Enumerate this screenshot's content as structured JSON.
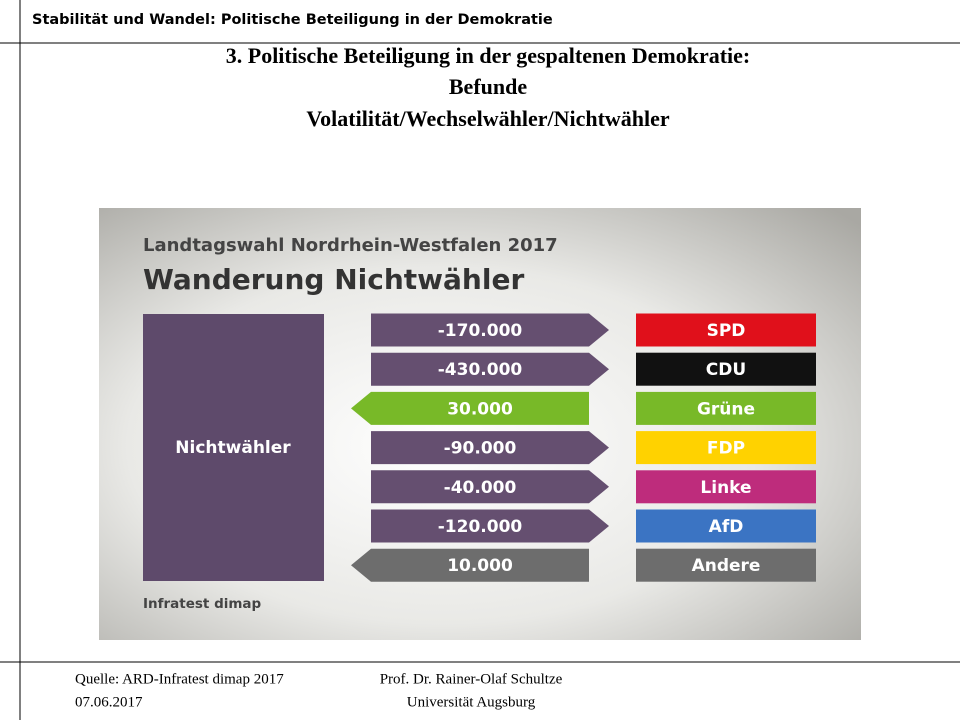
{
  "header": {
    "title": "Stabilität und Wandel: Politische Beteiligung in der Demokratie"
  },
  "slide_title": [
    "3. Politische Beteiligung in der gespaltenen Demokratie:",
    "Befunde",
    "Volatilität/Wechselwähler/Nichtwähler"
  ],
  "infographic": {
    "supertitle": "Landtagswahl Nordrhein-Westfalen 2017",
    "title": "Wanderung Nichtwähler",
    "source_box": "Nichtwähler",
    "source_color": "#5e4a6b",
    "credit": "Infratest dimap",
    "rows": [
      {
        "value": "-170.000",
        "party": "SPD",
        "arrow_color": "#654f70",
        "party_color": "#e0101b",
        "direction": "right"
      },
      {
        "value": "-430.000",
        "party": "CDU",
        "arrow_color": "#654f70",
        "party_color": "#111111",
        "direction": "right"
      },
      {
        "value": "30.000",
        "party": "Grüne",
        "arrow_color": "#78b928",
        "party_color": "#78b928",
        "direction": "left"
      },
      {
        "value": "-90.000",
        "party": "FDP",
        "arrow_color": "#654f70",
        "party_color": "#ffd200",
        "direction": "right"
      },
      {
        "value": "-40.000",
        "party": "Linke",
        "arrow_color": "#654f70",
        "party_color": "#be2c7c",
        "direction": "right"
      },
      {
        "value": "-120.000",
        "party": "AfD",
        "arrow_color": "#654f70",
        "party_color": "#3b74c3",
        "direction": "right"
      },
      {
        "value": "10.000",
        "party": "Andere",
        "arrow_color": "#6d6d6d",
        "party_color": "#6d6d6d",
        "direction": "left"
      }
    ]
  },
  "footer": {
    "source": "Quelle: ARD-Infratest dimap 2017",
    "date": "07.06.2017",
    "author": "Prof. Dr. Rainer-Olaf Schultze",
    "institution": "Universität Augsburg"
  }
}
